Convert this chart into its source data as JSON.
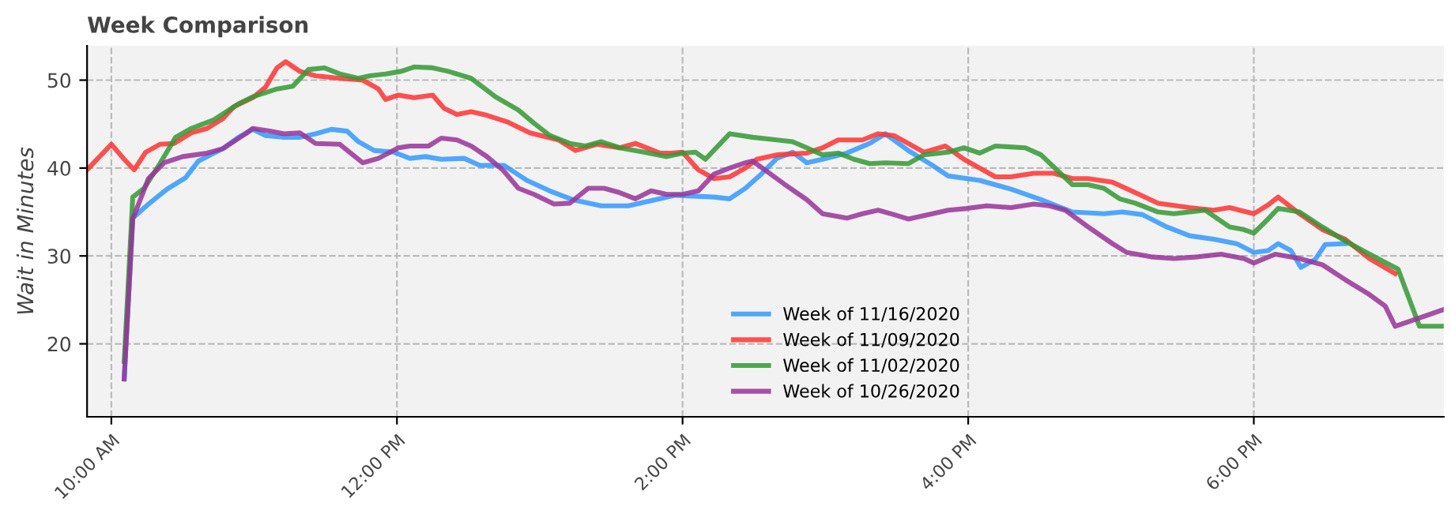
{
  "chart_data": {
    "type": "line",
    "title": "Week Comparison",
    "ylabel": "Wait in Minutes",
    "xlim": [
      9.83,
      19.33
    ],
    "ylim": [
      11.7,
      53.9
    ],
    "xticks": [
      {
        "value": 10,
        "label": "10:00 AM"
      },
      {
        "value": 12,
        "label": "12:00 PM"
      },
      {
        "value": 14,
        "label": "2:00 PM"
      },
      {
        "value": 16,
        "label": "4:00 PM"
      },
      {
        "value": 18,
        "label": "6:00 PM"
      }
    ],
    "yticks": [
      20,
      30,
      40,
      50
    ],
    "grid": true,
    "legend": "bottom",
    "line_style": "solid",
    "marker": "none",
    "series": [
      {
        "name": "Week of 11/16/2020",
        "color": "#3399ff",
        "x": [
          10.09,
          10.15,
          10.26,
          10.39,
          10.52,
          10.61,
          10.78,
          10.89,
          10.99,
          11.08,
          11.21,
          11.32,
          11.43,
          11.54,
          11.65,
          11.73,
          11.84,
          11.98,
          12.09,
          12.2,
          12.31,
          12.47,
          12.58,
          12.75,
          12.91,
          13.07,
          13.23,
          13.43,
          13.62,
          13.81,
          13.95,
          14.22,
          14.33,
          14.44,
          14.55,
          14.66,
          14.77,
          14.87,
          14.98,
          15.15,
          15.31,
          15.42,
          15.58,
          15.75,
          15.86,
          16.08,
          16.3,
          16.51,
          16.73,
          16.95,
          17.08,
          17.22,
          17.39,
          17.55,
          17.72,
          17.88,
          18.0,
          18.1,
          18.17,
          18.26,
          18.33,
          18.43,
          18.5,
          18.64
        ],
        "values": [
          16,
          34.3,
          35.9,
          37.6,
          38.9,
          40.8,
          42.2,
          43.5,
          44.4,
          43.7,
          43.5,
          43.5,
          43.9,
          44.4,
          44.2,
          43,
          42,
          41.8,
          41.1,
          41.3,
          41,
          41.1,
          40.3,
          40.3,
          38.6,
          37.4,
          36.4,
          35.7,
          35.7,
          36.4,
          36.9,
          36.7,
          36.5,
          37.7,
          39.3,
          41.1,
          41.8,
          40.6,
          41,
          41.7,
          42.8,
          43.9,
          42,
          40.3,
          39.1,
          38.6,
          37.6,
          36.4,
          35,
          34.8,
          35,
          34.7,
          33.3,
          32.3,
          31.9,
          31.4,
          30.4,
          30.6,
          31.4,
          30.6,
          28.7,
          29.6,
          31.3,
          31.4
        ]
      },
      {
        "name": "Week of 11/09/2020",
        "color": "#ff3333",
        "x": [
          9.83,
          10.0,
          10.09,
          10.16,
          10.24,
          10.34,
          10.44,
          10.56,
          10.67,
          10.78,
          10.86,
          10.99,
          11.08,
          11.16,
          11.22,
          11.32,
          11.43,
          11.6,
          11.76,
          11.87,
          11.92,
          12.01,
          12.12,
          12.25,
          12.33,
          12.42,
          12.52,
          12.63,
          12.78,
          12.93,
          13.13,
          13.25,
          13.4,
          13.56,
          13.67,
          13.84,
          13.92,
          14.0,
          14.11,
          14.22,
          14.33,
          14.44,
          14.52,
          14.66,
          14.87,
          14.98,
          15.09,
          15.26,
          15.37,
          15.48,
          15.58,
          15.69,
          15.84,
          15.97,
          16.08,
          16.19,
          16.3,
          16.46,
          16.6,
          16.73,
          16.84,
          17.01,
          17.17,
          17.33,
          17.55,
          17.72,
          17.83,
          18.0,
          18.1,
          18.17,
          18.32,
          18.48,
          18.64,
          18.81,
          18.99
        ],
        "values": [
          39.8,
          42.7,
          41,
          39.8,
          41.8,
          42.7,
          42.8,
          44,
          44.5,
          45.6,
          47,
          48,
          49.2,
          51.4,
          52.1,
          51,
          50.5,
          50.2,
          50,
          49,
          47.8,
          48.3,
          48,
          48.3,
          46.8,
          46.1,
          46.4,
          46,
          45.2,
          44,
          43.2,
          42,
          42.7,
          42.3,
          42.8,
          41.7,
          41.7,
          41.8,
          39.8,
          38.8,
          39,
          40,
          41,
          41.5,
          41.7,
          42.3,
          43.2,
          43.2,
          43.9,
          43.7,
          42.8,
          41.8,
          42.5,
          41,
          40,
          39,
          39,
          39.4,
          39.4,
          38.8,
          38.8,
          38.4,
          37.2,
          36,
          35.5,
          35.2,
          35.5,
          34.8,
          35.8,
          36.7,
          34.8,
          33,
          31.9,
          29.7,
          28
        ]
      },
      {
        "name": "Week of 11/02/2020",
        "color": "#339933",
        "x": [
          10.09,
          10.15,
          10.23,
          10.34,
          10.45,
          10.56,
          10.72,
          10.89,
          10.99,
          11.16,
          11.27,
          11.38,
          11.49,
          11.6,
          11.73,
          11.81,
          11.92,
          12.03,
          12.12,
          12.25,
          12.36,
          12.52,
          12.69,
          12.85,
          12.96,
          13.07,
          13.21,
          13.32,
          13.43,
          13.56,
          13.73,
          13.89,
          14.0,
          14.09,
          14.16,
          14.33,
          14.49,
          14.66,
          14.77,
          14.87,
          14.98,
          15.09,
          15.2,
          15.31,
          15.42,
          15.58,
          15.69,
          15.86,
          15.97,
          16.08,
          16.19,
          16.4,
          16.51,
          16.6,
          16.73,
          16.84,
          16.95,
          17.06,
          17.17,
          17.33,
          17.44,
          17.55,
          17.66,
          17.83,
          17.93,
          18.0,
          18.1,
          18.17,
          18.32,
          18.48,
          18.64,
          18.81,
          19.01,
          19.16,
          19.33
        ],
        "values": [
          18,
          36.7,
          37.7,
          40.5,
          43.5,
          44.5,
          45.5,
          47.3,
          48.1,
          49,
          49.3,
          51.2,
          51.4,
          50.7,
          50.2,
          50.5,
          50.7,
          51,
          51.5,
          51.4,
          51,
          50.2,
          48.1,
          46.6,
          45.1,
          43.7,
          42.8,
          42.5,
          43,
          42.3,
          41.8,
          41.3,
          41.7,
          41.8,
          41,
          43.9,
          43.5,
          43.2,
          43,
          42.3,
          41.5,
          41.7,
          41,
          40.5,
          40.6,
          40.5,
          41.5,
          41.8,
          42.3,
          41.7,
          42.5,
          42.3,
          41.5,
          40.1,
          38.1,
          38.1,
          37.7,
          36.5,
          36,
          35,
          34.8,
          35,
          35.2,
          33.3,
          33,
          32.6,
          34.2,
          35.4,
          35,
          33.3,
          31.7,
          30.2,
          28.5,
          22,
          22
        ]
      },
      {
        "name": "Week of 10/26/2020",
        "color": "#993399",
        "x": [
          10.09,
          10.15,
          10.26,
          10.37,
          10.5,
          10.67,
          10.78,
          10.94,
          10.99,
          11.11,
          11.21,
          11.32,
          11.43,
          11.6,
          11.76,
          11.87,
          12.01,
          12.09,
          12.22,
          12.31,
          12.42,
          12.52,
          12.63,
          12.74,
          12.85,
          12.96,
          13.1,
          13.21,
          13.34,
          13.45,
          13.56,
          13.67,
          13.78,
          13.89,
          14.0,
          14.11,
          14.22,
          14.33,
          14.44,
          14.49,
          14.55,
          14.71,
          14.87,
          14.98,
          15.15,
          15.26,
          15.37,
          15.48,
          15.58,
          15.75,
          15.86,
          15.99,
          16.13,
          16.3,
          16.46,
          16.57,
          16.68,
          16.84,
          17.01,
          17.11,
          17.28,
          17.44,
          17.61,
          17.77,
          17.93,
          18.0,
          18.15,
          18.32,
          18.48,
          18.64,
          18.81,
          18.92,
          18.99,
          19.33
        ],
        "values": [
          16,
          34.2,
          38.8,
          40.6,
          41.3,
          41.7,
          42.2,
          43.9,
          44.5,
          44.2,
          43.9,
          44,
          42.8,
          42.7,
          40.6,
          41.1,
          42.3,
          42.5,
          42.5,
          43.4,
          43.2,
          42.5,
          41.3,
          39.8,
          37.7,
          37,
          35.9,
          36,
          37.7,
          37.7,
          37.2,
          36.5,
          37.4,
          37,
          37,
          37.4,
          39.3,
          40,
          40.6,
          40.8,
          40.1,
          38.2,
          36.4,
          34.8,
          34.3,
          34.8,
          35.2,
          34.7,
          34.2,
          34.8,
          35.2,
          35.4,
          35.7,
          35.5,
          35.9,
          35.7,
          35.2,
          33.3,
          31.4,
          30.4,
          29.9,
          29.7,
          29.9,
          30.2,
          29.7,
          29.2,
          30.2,
          29.7,
          29,
          27.3,
          25.6,
          24.3,
          22,
          23.9
        ]
      }
    ]
  }
}
